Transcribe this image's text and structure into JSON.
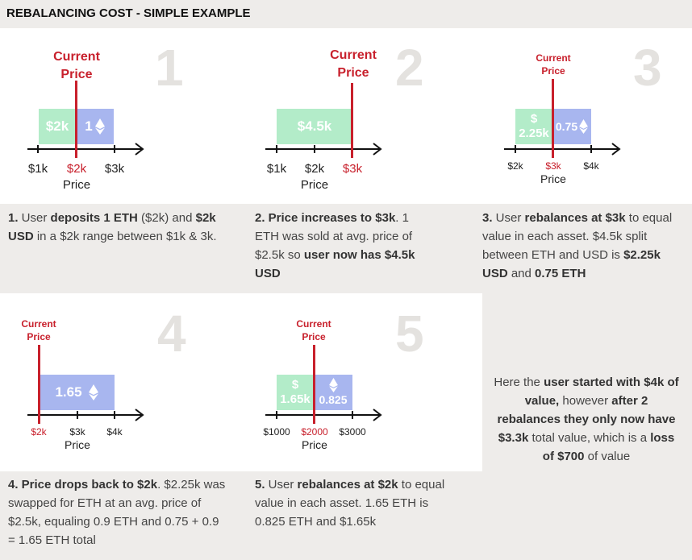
{
  "title": "REBALANCING COST - SIMPLE EXAMPLE",
  "colors": {
    "usd": "#b3ecc9",
    "eth": "#a8b6ef",
    "price": "#c8202c",
    "band": "#eeecea"
  },
  "axis_label": "Price",
  "current_price": "Current Price",
  "panels": [
    {
      "num": "1",
      "cp_line1": "Current",
      "cp_line2": "Price",
      "box_usd": "$2k",
      "box_eth": "1",
      "ticks": [
        "$1k",
        "$2k",
        "$3k"
      ],
      "red_tick": 1,
      "desc": {
        "p1": "1.",
        "p2": " User ",
        "p3": "deposits 1 ETH",
        "p4": " ($2k) and ",
        "p5": "$2k USD",
        "p6": " in a $2k range between $1k & 3k."
      }
    },
    {
      "num": "2",
      "cp_line1": "Current",
      "cp_line2": "Price",
      "box_usd": "$4.5k",
      "ticks": [
        "$1k",
        "$2k",
        "$3k"
      ],
      "red_tick": 2,
      "desc": {
        "p1": "2. Price increases to $3k",
        "p2": ". 1 ETH was sold at avg. price of $2.5k so ",
        "p3": "user now has $4.5k USD"
      }
    },
    {
      "num": "3",
      "cp_line1": "Current",
      "cp_line2": "Price",
      "box_usd_1": "$",
      "box_usd_2": "2.25k",
      "box_eth": "0.75",
      "ticks": [
        "$2k",
        "$3k",
        "$4k"
      ],
      "red_tick": 1,
      "desc": {
        "p1": "3.",
        "p2": " User ",
        "p3": "rebalances at $3k",
        "p4": " to equal value in each asset.  $4.5k split between ETH and USD is ",
        "p5": "$2.25k USD",
        "p6": " and ",
        "p7": "0.75 ETH"
      }
    },
    {
      "num": "4",
      "cp_line1": "Current",
      "cp_line2": "Price",
      "box_eth": "1.65",
      "ticks": [
        "$2k",
        "$3k",
        "$4k"
      ],
      "red_tick": 0,
      "desc": {
        "p1": "4. Price drops back to $2k",
        "p2": ". $2.25k was swapped for ETH at an avg. price of $2.5k, equaling 0.9 ETH and 0.75 + 0.9 = 1.65 ETH total"
      }
    },
    {
      "num": "5",
      "cp_line1": "Current",
      "cp_line2": "Price",
      "box_usd_1": "$",
      "box_usd_2": "1.65k",
      "box_eth": "0.825",
      "ticks": [
        "$1000",
        "$2000",
        "$3000"
      ],
      "red_tick": 1,
      "desc": {
        "p1": "5.",
        "p2": " User ",
        "p3": "rebalances at $2k",
        "p4": " to equal value in each asset.  1.65 ETH is 0.825 ETH and $1.65k"
      }
    }
  ],
  "summary": {
    "s1": "Here the ",
    "s2": "user started with $4k of value,",
    "s3": " however ",
    "s4": "after 2 rebalances they only now have $3.3k",
    "s5": " total value, which is a ",
    "s6": "loss of $700",
    "s7": " of value"
  }
}
